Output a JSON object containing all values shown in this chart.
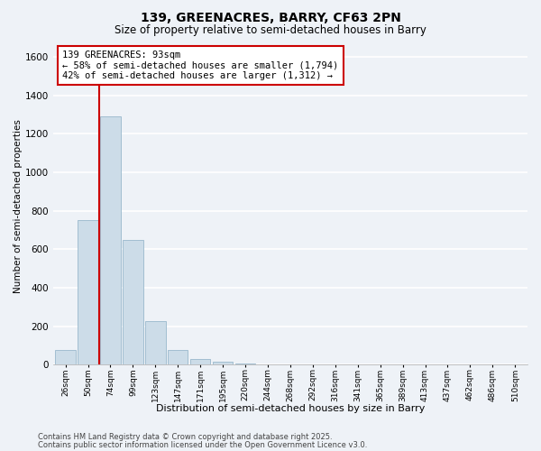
{
  "title1": "139, GREENACRES, BARRY, CF63 2PN",
  "title2": "Size of property relative to semi-detached houses in Barry",
  "xlabel": "Distribution of semi-detached houses by size in Barry",
  "ylabel": "Number of semi-detached properties",
  "categories": [
    "26sqm",
    "50sqm",
    "74sqm",
    "99sqm",
    "123sqm",
    "147sqm",
    "171sqm",
    "195sqm",
    "220sqm",
    "244sqm",
    "268sqm",
    "292sqm",
    "316sqm",
    "341sqm",
    "365sqm",
    "389sqm",
    "413sqm",
    "437sqm",
    "462sqm",
    "486sqm",
    "510sqm"
  ],
  "values": [
    75,
    750,
    1290,
    650,
    225,
    75,
    30,
    15,
    5,
    0,
    0,
    0,
    0,
    0,
    0,
    0,
    0,
    0,
    0,
    0,
    0
  ],
  "bar_color": "#ccdce8",
  "bar_edge_color": "#98b8cc",
  "vline_color": "#cc0000",
  "annotation_text": "139 GREENACRES: 93sqm\n← 58% of semi-detached houses are smaller (1,794)\n42% of semi-detached houses are larger (1,312) →",
  "annotation_box_color": "#ffffff",
  "annotation_box_edge": "#cc0000",
  "ylim": [
    0,
    1650
  ],
  "yticks": [
    0,
    200,
    400,
    600,
    800,
    1000,
    1200,
    1400,
    1600
  ],
  "bg_color": "#eef2f7",
  "grid_color": "#ffffff",
  "footnote1": "Contains HM Land Registry data © Crown copyright and database right 2025.",
  "footnote2": "Contains public sector information licensed under the Open Government Licence v3.0."
}
